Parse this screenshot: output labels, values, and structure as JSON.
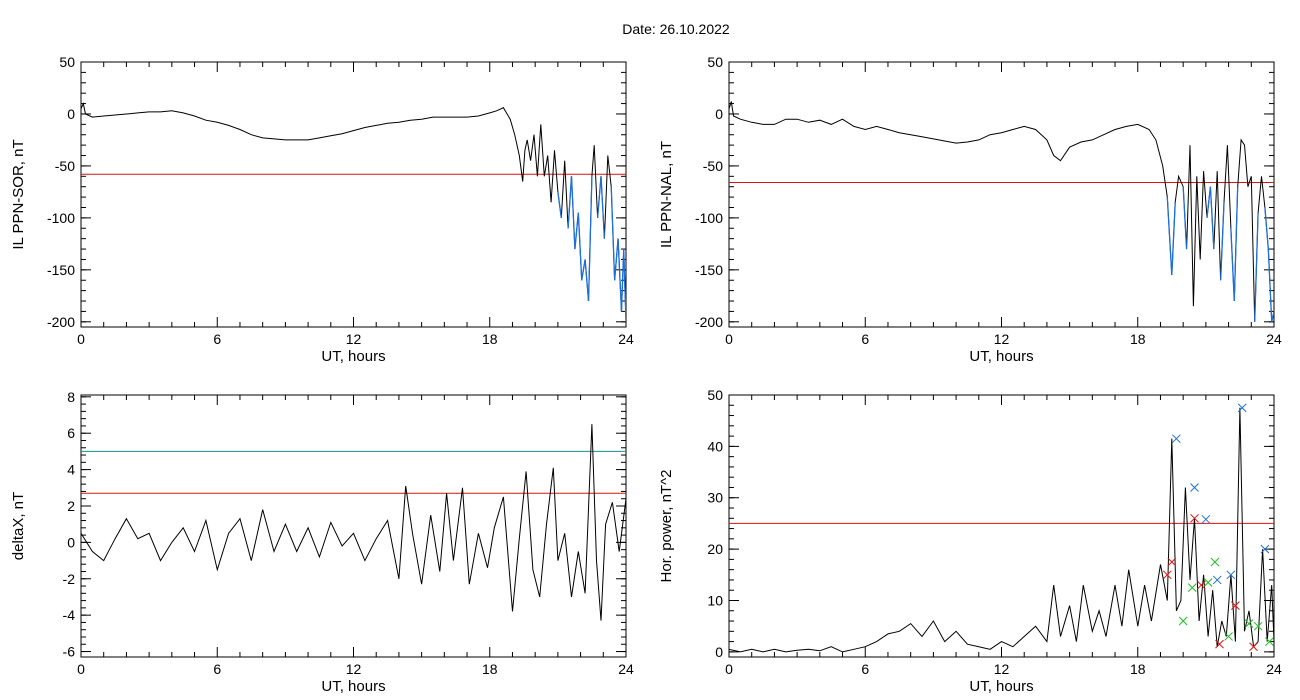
{
  "figure": {
    "title": "Date:  26.10.2022"
  },
  "colors": {
    "trace": "#000000",
    "threshold": "#dd1111",
    "active": "#1d6fd9",
    "secondary": "#16908a",
    "peak_blue": "#1f6fd0",
    "peak_red": "#dd1111",
    "peak_green": "#22bb22"
  },
  "chart_data": [
    {
      "id": "ppn-sor",
      "type": "line",
      "xlabel": "UT, hours",
      "ylabel": "IL PPN-SOR, nT",
      "xlim": [
        0,
        24
      ],
      "ylim": [
        -205,
        50
      ],
      "xticks": [
        0,
        6,
        12,
        18,
        24
      ],
      "yticks": [
        50,
        0,
        -50,
        -100,
        -150,
        -200
      ],
      "thresholds": [
        {
          "value": -58,
          "color": "#dd1111"
        }
      ],
      "active_below": -58,
      "series": [
        {
          "x": [
            0,
            0.1,
            0.2,
            0.5,
            1,
            1.5,
            2,
            2.5,
            3,
            3.5,
            4,
            4.5,
            5,
            5.5,
            6,
            6.5,
            7,
            7.5,
            8,
            8.5,
            9,
            9.5,
            10,
            10.5,
            11,
            11.5,
            12,
            12.5,
            13,
            13.5,
            14,
            14.5,
            15,
            15.5,
            16,
            16.5,
            17,
            17.5,
            18,
            18.3,
            18.6,
            18.9,
            19.1,
            19.3,
            19.45,
            19.55,
            19.65,
            19.8,
            19.95,
            20.1,
            20.25,
            20.4,
            20.55,
            20.7,
            20.85,
            21.0,
            21.15,
            21.3,
            21.45,
            21.6,
            21.75,
            21.9,
            22.05,
            22.2,
            22.35,
            22.5,
            22.6,
            22.75,
            22.9,
            23.05,
            23.2,
            23.35,
            23.5,
            23.65,
            23.8,
            23.9,
            24.0
          ],
          "y": [
            5,
            10,
            0,
            -3,
            -2,
            -1,
            0,
            1,
            2,
            2,
            3,
            1,
            -2,
            -6,
            -8,
            -11,
            -15,
            -20,
            -23,
            -24,
            -25,
            -25,
            -25,
            -23,
            -21,
            -19,
            -16,
            -13,
            -11,
            -9,
            -8,
            -6,
            -5,
            -3,
            -3,
            -3,
            -3,
            -2,
            1,
            3,
            6,
            -5,
            -20,
            -40,
            -65,
            -35,
            -25,
            -45,
            -20,
            -60,
            -10,
            -60,
            -40,
            -85,
            -35,
            -75,
            -100,
            -45,
            -110,
            -60,
            -130,
            -95,
            -160,
            -140,
            -180,
            -60,
            -30,
            -100,
            -60,
            -120,
            -40,
            -70,
            -160,
            -120,
            -190,
            -130,
            -200
          ]
        }
      ]
    },
    {
      "id": "ppn-nal",
      "type": "line",
      "xlabel": "UT, hours",
      "ylabel": "IL PPN-NAL, nT",
      "xlim": [
        0,
        24
      ],
      "ylim": [
        -205,
        50
      ],
      "xticks": [
        0,
        6,
        12,
        18,
        24
      ],
      "yticks": [
        50,
        0,
        -50,
        -100,
        -150,
        -200
      ],
      "thresholds": [
        {
          "value": -66,
          "color": "#dd1111"
        }
      ],
      "active_below": -66,
      "series": [
        {
          "x": [
            0,
            0.1,
            0.2,
            0.5,
            1,
            1.5,
            2,
            2.5,
            3,
            3.5,
            4,
            4.5,
            5,
            5.5,
            6,
            6.5,
            7,
            7.5,
            8,
            8.5,
            9,
            9.5,
            10,
            10.5,
            11,
            11.5,
            12,
            12.5,
            13,
            13.5,
            14,
            14.3,
            14.6,
            15,
            15.5,
            16,
            16.5,
            17,
            17.5,
            18,
            18.5,
            18.8,
            19.1,
            19.3,
            19.5,
            19.65,
            19.8,
            20.0,
            20.15,
            20.3,
            20.45,
            20.6,
            20.75,
            20.9,
            21.05,
            21.2,
            21.35,
            21.5,
            21.65,
            21.8,
            21.95,
            22.1,
            22.25,
            22.4,
            22.55,
            22.7,
            22.85,
            23.0,
            23.15,
            23.3,
            23.45,
            23.6,
            23.75,
            23.9,
            24.0
          ],
          "y": [
            5,
            12,
            -2,
            -5,
            -8,
            -10,
            -10,
            -5,
            -5,
            -8,
            -6,
            -10,
            -5,
            -12,
            -15,
            -12,
            -15,
            -18,
            -20,
            -22,
            -24,
            -26,
            -28,
            -27,
            -25,
            -20,
            -18,
            -15,
            -12,
            -15,
            -25,
            -40,
            -45,
            -32,
            -27,
            -25,
            -20,
            -15,
            -12,
            -10,
            -15,
            -25,
            -50,
            -80,
            -155,
            -85,
            -60,
            -70,
            -130,
            -30,
            -185,
            -60,
            -140,
            -55,
            -100,
            -70,
            -130,
            -55,
            -160,
            -85,
            -30,
            -110,
            -180,
            -70,
            -25,
            -30,
            -70,
            -60,
            -200,
            -95,
            -60,
            -90,
            -130,
            -200,
            -190
          ]
        }
      ]
    },
    {
      "id": "deltax",
      "type": "line",
      "xlabel": "UT, hours",
      "ylabel": "deltaX, nT",
      "xlim": [
        0,
        24
      ],
      "ylim": [
        -6.3,
        8.1
      ],
      "xticks": [
        0,
        6,
        12,
        18,
        24
      ],
      "yticks": [
        8,
        6,
        4,
        2,
        0,
        -2,
        -4,
        -6
      ],
      "thresholds": [
        {
          "value": 5,
          "color": "#16908a"
        },
        {
          "value": 2.7,
          "color": "#dd1111"
        }
      ],
      "series": [
        {
          "x": [
            0,
            0.5,
            1,
            1.5,
            2,
            2.5,
            3,
            3.5,
            4,
            4.5,
            5,
            5.5,
            6,
            6.5,
            7,
            7.5,
            8,
            8.5,
            9,
            9.5,
            10,
            10.5,
            11,
            11.5,
            12,
            12.5,
            13,
            13.5,
            14,
            14.3,
            14.6,
            15,
            15.4,
            15.8,
            16.1,
            16.4,
            16.8,
            17.1,
            17.5,
            17.9,
            18.2,
            18.6,
            19.0,
            19.3,
            19.6,
            19.9,
            20.2,
            20.5,
            20.8,
            21.0,
            21.3,
            21.6,
            21.9,
            22.2,
            22.5,
            22.7,
            22.9,
            23.1,
            23.4,
            23.7,
            24.0
          ],
          "y": [
            0.5,
            -0.5,
            -1,
            0.2,
            1.3,
            0.2,
            0.5,
            -1,
            0,
            0.8,
            -0.5,
            1.2,
            -1.5,
            0.5,
            1.3,
            -1,
            1.8,
            -0.5,
            1,
            -0.5,
            0.8,
            -0.8,
            1.1,
            -0.2,
            0.5,
            -1,
            0.2,
            1.2,
            -2,
            3.1,
            0.5,
            -2.3,
            1.5,
            -1.6,
            2.7,
            -1,
            3,
            -2.3,
            0.5,
            -1.4,
            0.8,
            2.5,
            -3.8,
            0.2,
            3.9,
            -1.5,
            -3,
            1,
            4.1,
            -1,
            0.5,
            -3,
            -0.5,
            -2.8,
            6.5,
            -1,
            -4.3,
            1,
            2.2,
            -0.5,
            2.4
          ]
        }
      ]
    },
    {
      "id": "hor-power",
      "type": "line",
      "xlabel": "UT, hours",
      "ylabel": "Hor. power, nT^2",
      "xlim": [
        0,
        24
      ],
      "ylim": [
        -1,
        50
      ],
      "xticks": [
        0,
        6,
        12,
        18,
        24
      ],
      "yticks": [
        50,
        40,
        30,
        20,
        10,
        0
      ],
      "thresholds": [
        {
          "value": 25,
          "color": "#dd1111"
        }
      ],
      "series": [
        {
          "x": [
            0,
            0.5,
            1,
            1.5,
            2,
            2.5,
            3,
            3.5,
            4,
            4.5,
            5,
            5.5,
            6,
            6.5,
            7,
            7.5,
            8,
            8.5,
            9,
            9.5,
            10,
            10.5,
            11,
            11.5,
            12,
            12.5,
            13,
            13.5,
            14,
            14.3,
            14.6,
            15,
            15.3,
            15.6,
            16,
            16.3,
            16.6,
            17,
            17.3,
            17.6,
            18,
            18.3,
            18.6,
            19.0,
            19.3,
            19.5,
            19.7,
            19.9,
            20.1,
            20.3,
            20.5,
            20.7,
            20.9,
            21.1,
            21.3,
            21.5,
            21.7,
            21.9,
            22.1,
            22.3,
            22.5,
            22.7,
            22.9,
            23.1,
            23.3,
            23.5,
            23.7,
            23.9,
            24.0
          ],
          "y": [
            0.5,
            0,
            0.5,
            0,
            0.5,
            0,
            0.3,
            0.5,
            0.2,
            1,
            0,
            0.5,
            1,
            2,
            3.5,
            4,
            5.5,
            3,
            6,
            2,
            4,
            1.5,
            1,
            0.5,
            2,
            1,
            3,
            5,
            2,
            13,
            3,
            9,
            2,
            13,
            4,
            8,
            3,
            13,
            5,
            16,
            5,
            13,
            6,
            17,
            10,
            41.5,
            8,
            10,
            32,
            14,
            26,
            6,
            15,
            3,
            12,
            1,
            6,
            3,
            15,
            2,
            47.5,
            4,
            8,
            1,
            2,
            20,
            2,
            13,
            2
          ]
        }
      ],
      "markers": [
        {
          "color": "#1f6fd0",
          "points": [
            [
              19.7,
              41.5
            ],
            [
              20.5,
              32
            ],
            [
              21,
              25.8
            ],
            [
              21.5,
              14
            ],
            [
              22.1,
              15
            ],
            [
              22.6,
              47.5
            ],
            [
              23.6,
              20
            ]
          ]
        },
        {
          "color": "#dd1111",
          "points": [
            [
              19.3,
              15
            ],
            [
              19.5,
              17.5
            ],
            [
              20.5,
              26
            ],
            [
              20.8,
              13
            ],
            [
              21.6,
              1.5
            ],
            [
              22.3,
              9
            ],
            [
              23.1,
              1
            ]
          ]
        },
        {
          "color": "#22bb22",
          "points": [
            [
              20.0,
              6
            ],
            [
              20.4,
              12.5
            ],
            [
              21.1,
              13.5
            ],
            [
              21.4,
              17.5
            ],
            [
              22.0,
              3
            ],
            [
              22.9,
              5.5
            ],
            [
              23.3,
              5
            ],
            [
              23.8,
              2
            ]
          ]
        }
      ]
    }
  ]
}
